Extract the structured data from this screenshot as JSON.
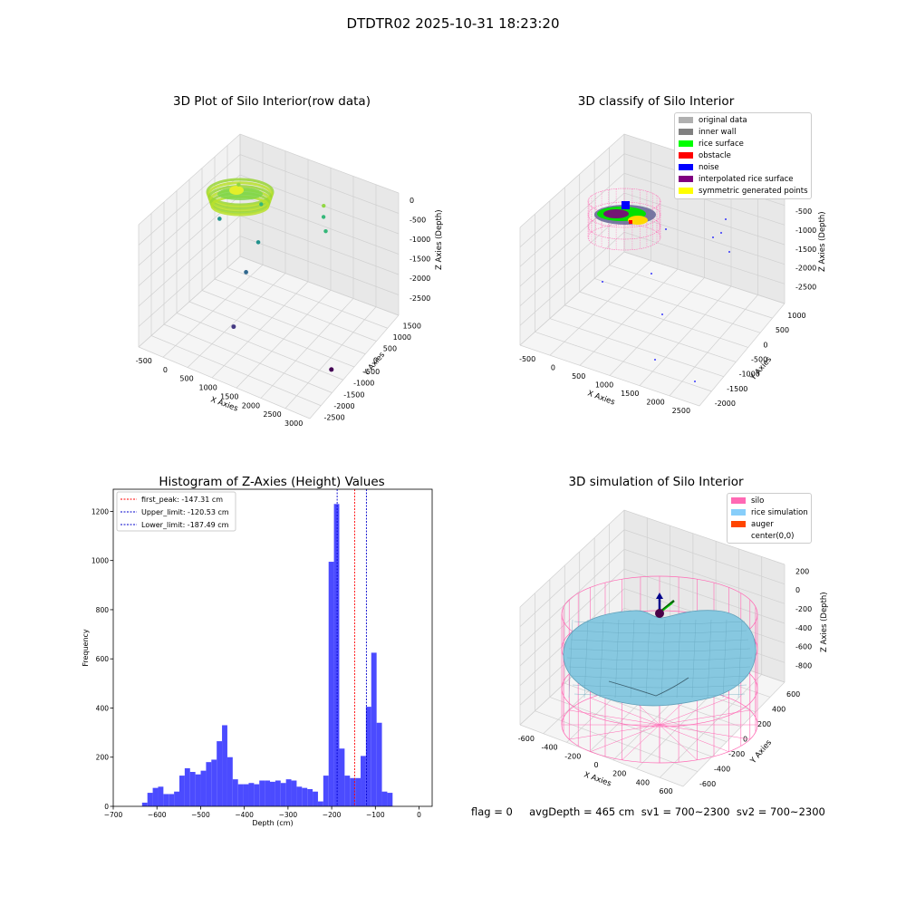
{
  "suptitle": "DTDTR02 2025-10-31 18:23:20",
  "footer": "flag = 0     avgDepth = 465 cm  sv1 = 700~2300  sv2 = 700~2300",
  "chart_data": [
    {
      "type": "scatter",
      "subtype": "3d",
      "title": "3D Plot of Silo Interior(row data)",
      "xlabel": "X Axies",
      "ylabel": "Y Axies",
      "zlabel": "Z Axies (Depth)",
      "xticks": [
        "-500",
        "0",
        "500",
        "1000",
        "1500",
        "2000",
        "2500",
        "3000"
      ],
      "yticks": [
        "1500",
        "1000",
        "500",
        "0",
        "-500",
        "-1000",
        "-1500",
        "-2000",
        "-2500"
      ],
      "zticks": [
        "0",
        "-500",
        "-1000",
        "-1500",
        "-2000",
        "-2500"
      ],
      "colormap": "viridis",
      "points": [
        {
          "x": -200,
          "y": 900,
          "z": -700
        },
        {
          "x": 400,
          "y": 700,
          "z": -800
        },
        {
          "x": 1450,
          "y": 1300,
          "z": -750
        },
        {
          "x": 1550,
          "y": 1100,
          "z": -850
        },
        {
          "x": 1700,
          "y": 900,
          "z": -1000
        },
        {
          "x": -450,
          "y": 600,
          "z": -1400
        },
        {
          "x": 600,
          "y": 200,
          "z": -1300
        },
        {
          "x": 600,
          "y": -300,
          "z": -1700
        },
        {
          "x": 900,
          "y": -1400,
          "z": -2200
        },
        {
          "x": 2800,
          "y": -1100,
          "z": -2500
        }
      ]
    },
    {
      "type": "scatter",
      "subtype": "3d",
      "title": "3D classify of Silo Interior",
      "xlabel": "X Axies",
      "ylabel": "Y Axies",
      "zlabel": "Z Axies (Depth)",
      "xticks": [
        "-500",
        "0",
        "500",
        "1000",
        "1500",
        "2000",
        "2500"
      ],
      "yticks": [
        "1000",
        "500",
        "0",
        "-500",
        "-1000",
        "-1500",
        "-2000"
      ],
      "zticks": [
        "0",
        "-500",
        "-1000",
        "-1500",
        "-2000",
        "-2500"
      ],
      "legend": [
        {
          "label": "original data",
          "color": "#b0b0b0"
        },
        {
          "label": "inner wall",
          "color": "#808080"
        },
        {
          "label": "rice surface",
          "color": "#00ff00"
        },
        {
          "label": "obstacle",
          "color": "#ff0000"
        },
        {
          "label": "noise",
          "color": "#0000ff"
        },
        {
          "label": "interpolated rice surface",
          "color": "#800080"
        },
        {
          "label": "symmetric generated points",
          "color": "#ffff00"
        }
      ],
      "legend_loc": "upper right"
    },
    {
      "type": "bar",
      "subtype": "histogram",
      "title": "Histogram of Z-Axies (Height) Values",
      "xlabel": "Depth (cm)",
      "ylabel": "Frequency",
      "xlim": [
        -700,
        30
      ],
      "ylim": [
        0,
        1290
      ],
      "xticks": [
        -700,
        -600,
        -500,
        -400,
        -300,
        -200,
        -100,
        0
      ],
      "yticks": [
        0,
        200,
        400,
        600,
        800,
        1000,
        1200
      ],
      "bar_color": "#4b4bff",
      "bin_start": -634,
      "bin_width": 12.2,
      "values": [
        15,
        55,
        75,
        80,
        50,
        50,
        60,
        125,
        155,
        140,
        130,
        145,
        180,
        190,
        265,
        330,
        200,
        110,
        90,
        90,
        95,
        90,
        105,
        105,
        100,
        105,
        95,
        110,
        105,
        80,
        75,
        70,
        60,
        20,
        125,
        995,
        1230,
        235,
        125,
        115,
        115,
        205,
        405,
        625,
        340,
        60,
        55
      ],
      "vlines": [
        {
          "label": "first_peak: -147.31 cm",
          "x": -147.31,
          "color": "#ff0000"
        },
        {
          "label": "Upper_limit: -120.53 cm",
          "x": -120.53,
          "color": "#0000cc"
        },
        {
          "label": "Lower_limit: -187.49 cm",
          "x": -187.49,
          "color": "#0000cc"
        }
      ],
      "legend_loc": "upper left"
    },
    {
      "type": "surface",
      "subtype": "3d",
      "title": "3D simulation of Silo Interior",
      "xlabel": "X Axies",
      "ylabel": "Y Axies",
      "zlabel": "Z Axies (Depth)",
      "xticks": [
        "-600",
        "-400",
        "-200",
        "0",
        "200",
        "400",
        "600"
      ],
      "yticks": [
        "600",
        "400",
        "200",
        "0",
        "-200",
        "-400",
        "-600"
      ],
      "zticks": [
        "200",
        "0",
        "-200",
        "-400",
        "-600",
        "-800"
      ],
      "legend": [
        {
          "label": "silo",
          "color": "#ff69b4"
        },
        {
          "label": "rice simulation",
          "color": "#87cefa"
        },
        {
          "label": "auger",
          "color": "#ff4500"
        },
        {
          "label": "center(0,0)",
          "color": ""
        }
      ],
      "legend_loc": "upper right"
    }
  ]
}
